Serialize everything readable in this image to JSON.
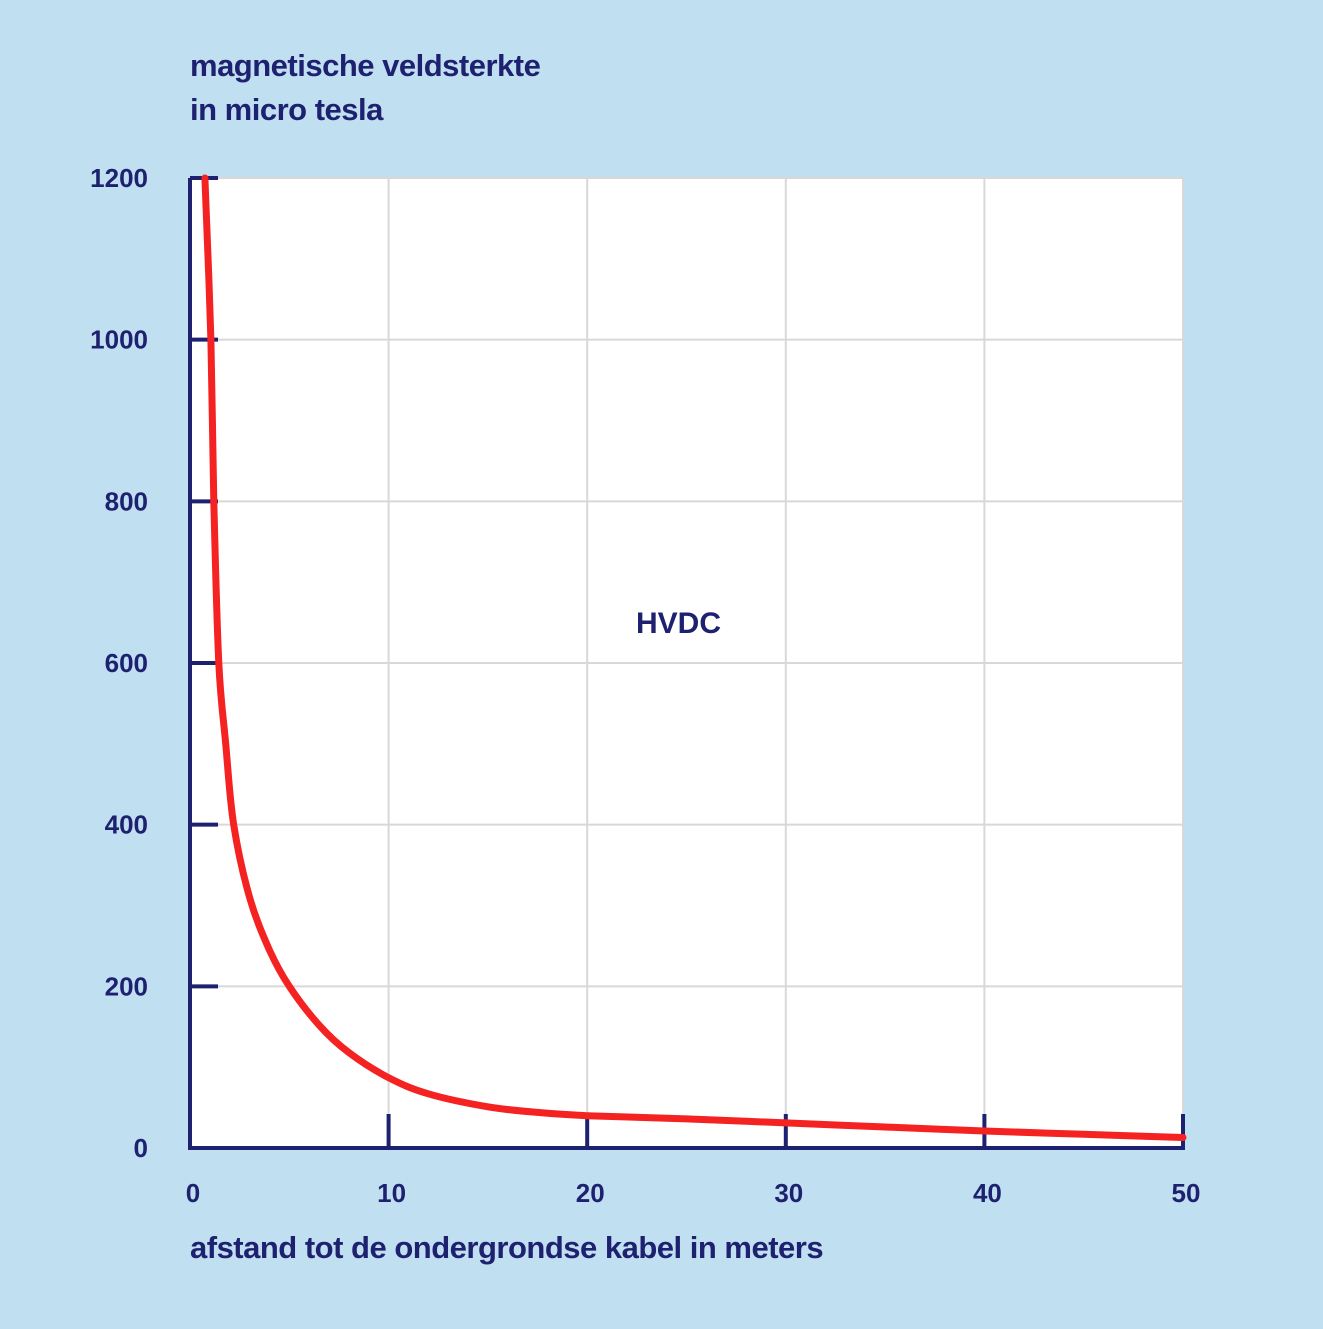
{
  "chart_data": {
    "type": "line",
    "title": "",
    "ylabel_lines": [
      "magnetische veldsterkte",
      "in micro tesla"
    ],
    "xlabel": "afstand tot de ondergrondse kabel in meters",
    "xlim": [
      0,
      50
    ],
    "ylim": [
      0,
      1200
    ],
    "x_ticks": [
      "0",
      "10",
      "20",
      "30",
      "40",
      "50"
    ],
    "y_ticks": [
      "0",
      "200",
      "400",
      "600",
      "800",
      "1000",
      "1200"
    ],
    "grid": true,
    "annotation": "HVDC",
    "series": [
      {
        "name": "HVDC",
        "color": "#f52222",
        "x": [
          0.75,
          1.05,
          1.2,
          1.45,
          1.8,
          2.2,
          3.0,
          4.0,
          5.0,
          6.5,
          8.0,
          10.0,
          12.0,
          15.0,
          17.5,
          20.0,
          25.0,
          30.0,
          35.0,
          40.0,
          45.0,
          50.0
        ],
        "y": [
          1200,
          1000,
          800,
          600,
          500,
          400,
          310,
          245,
          200,
          152,
          118,
          87,
          67,
          51,
          44,
          40,
          36,
          31,
          26,
          21,
          17,
          13
        ]
      }
    ]
  },
  "colors": {
    "background": "#c0dff0",
    "plot": "#ffffff",
    "axis": "#1e2170",
    "grid": "#d8d8d8"
  }
}
